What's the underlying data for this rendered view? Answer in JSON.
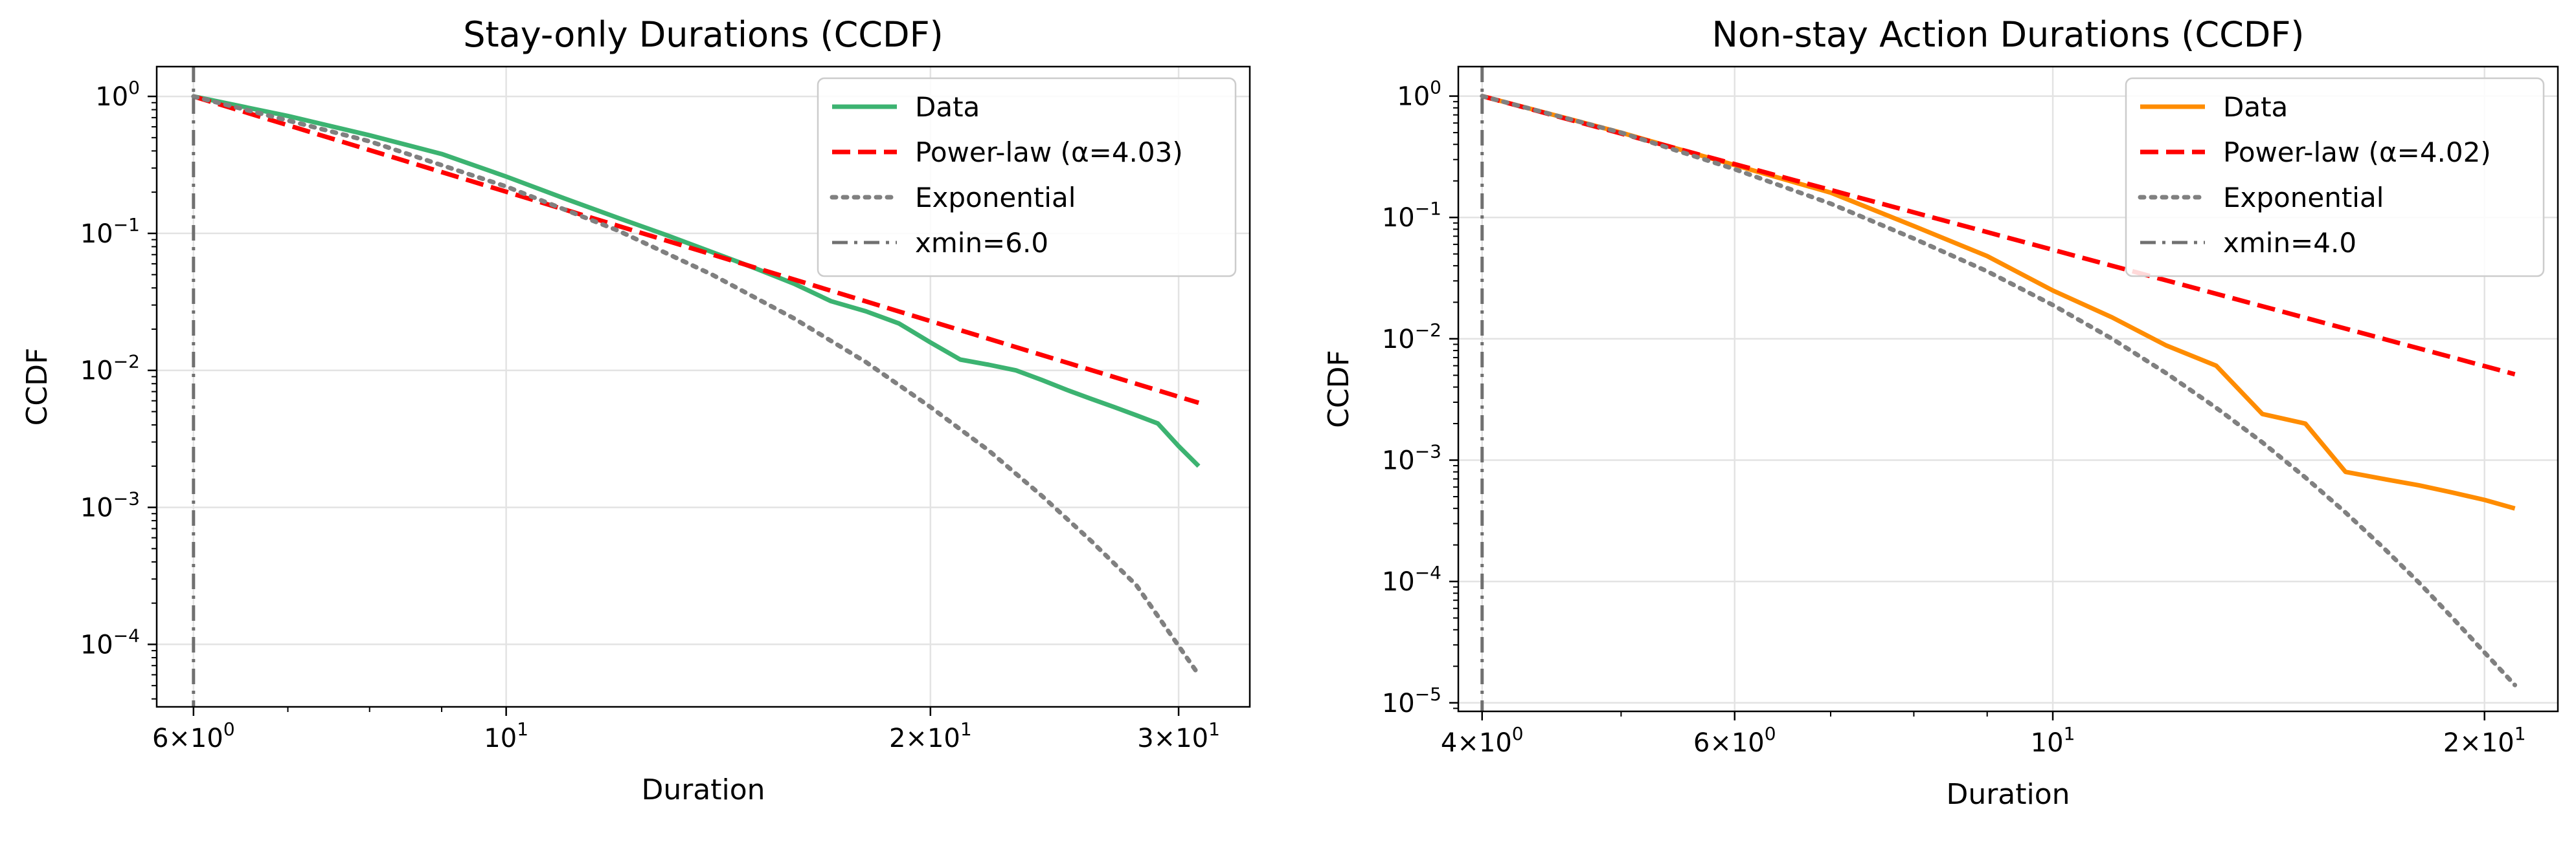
{
  "chart_data": [
    {
      "type": "line",
      "title": "Stay-only Durations (CCDF)",
      "xlabel": "Duration",
      "ylabel": "CCDF",
      "xscale": "log",
      "yscale": "log",
      "xlim": [
        5.65,
        33.7
      ],
      "ylim": [
        3.5e-05,
        1.65
      ],
      "grid": true,
      "legend_position": "top-right",
      "xticks": [
        {
          "value": 6,
          "mantissa": "6",
          "exp": "0"
        },
        {
          "value": 10,
          "mantissa": "",
          "exp": "1"
        },
        {
          "value": 20,
          "mantissa": "2",
          "exp": "1"
        },
        {
          "value": 30,
          "mantissa": "3",
          "exp": "1"
        }
      ],
      "yticks": [
        {
          "value": 1,
          "exp": "0"
        },
        {
          "value": 0.1,
          "exp": "−1"
        },
        {
          "value": 0.01,
          "exp": "−2"
        },
        {
          "value": 0.001,
          "exp": "−3"
        },
        {
          "value": 0.0001,
          "exp": "−4"
        }
      ],
      "series": [
        {
          "name": "Data",
          "color": "#3cb371",
          "style": "solid",
          "x": [
            6,
            7,
            8,
            9,
            10,
            11,
            12,
            13,
            14,
            15,
            16,
            17,
            18,
            19,
            20,
            21,
            22,
            23,
            24,
            25,
            26,
            27,
            28,
            29,
            30,
            31
          ],
          "y": [
            1.0,
            0.72,
            0.52,
            0.38,
            0.26,
            0.18,
            0.13,
            0.097,
            0.073,
            0.056,
            0.043,
            0.032,
            0.027,
            0.022,
            0.016,
            0.012,
            0.011,
            0.01,
            0.0085,
            0.0072,
            0.0062,
            0.0054,
            0.0047,
            0.0041,
            0.0028,
            0.002
          ]
        },
        {
          "name": "Power-law (α=4.03)",
          "color": "#ff0000",
          "style": "dashed",
          "x": [
            6,
            31
          ],
          "y": [
            1.0,
            0.0058
          ]
        },
        {
          "name": "Exponential",
          "color": "#808080",
          "style": "dotted",
          "x": [
            6,
            8,
            10,
            12,
            14,
            16,
            18,
            20,
            22,
            24,
            26,
            28,
            31
          ],
          "y": [
            1.0,
            0.47,
            0.22,
            0.105,
            0.05,
            0.024,
            0.0115,
            0.0054,
            0.0026,
            0.00121,
            0.00057,
            0.00027,
            6e-05
          ]
        },
        {
          "name": "xmin=6.0",
          "color": "#707070",
          "style": "dashdot",
          "vline": 6
        }
      ]
    },
    {
      "type": "line",
      "title": "Non-stay Action Durations (CCDF)",
      "xlabel": "Duration",
      "ylabel": "CCDF",
      "xscale": "log",
      "yscale": "log",
      "xlim": [
        3.85,
        22.5
      ],
      "ylim": [
        8.5e-06,
        1.75
      ],
      "grid": true,
      "legend_position": "top-right",
      "xticks": [
        {
          "value": 4,
          "mantissa": "4",
          "exp": "0"
        },
        {
          "value": 6,
          "mantissa": "6",
          "exp": "0"
        },
        {
          "value": 10,
          "mantissa": "",
          "exp": "1"
        },
        {
          "value": 20,
          "mantissa": "2",
          "exp": "1"
        }
      ],
      "yticks": [
        {
          "value": 1,
          "exp": "0"
        },
        {
          "value": 0.1,
          "exp": "−1"
        },
        {
          "value": 0.01,
          "exp": "−2"
        },
        {
          "value": 0.001,
          "exp": "−3"
        },
        {
          "value": 0.0001,
          "exp": "−4"
        },
        {
          "value": 1e-05,
          "exp": "−5"
        }
      ],
      "series": [
        {
          "name": "Data",
          "color": "#ff8c00",
          "style": "solid",
          "x": [
            4,
            5,
            6,
            7,
            8,
            9,
            10,
            11,
            12,
            13,
            14,
            15,
            16,
            17,
            18,
            19,
            20,
            21
          ],
          "y": [
            1.0,
            0.5,
            0.27,
            0.16,
            0.085,
            0.048,
            0.025,
            0.015,
            0.0088,
            0.006,
            0.0024,
            0.002,
            0.0008,
            0.0007,
            0.00062,
            0.00054,
            0.00047,
            0.0004
          ]
        },
        {
          "name": "Power-law (α=4.02)",
          "color": "#ff0000",
          "style": "dashed",
          "x": [
            4,
            21
          ],
          "y": [
            1.0,
            0.0051
          ]
        },
        {
          "name": "Exponential",
          "color": "#808080",
          "style": "dotted",
          "x": [
            4,
            5,
            6,
            7,
            8,
            9,
            10,
            11,
            12,
            13,
            14,
            15,
            16,
            17,
            18,
            19,
            20,
            21
          ],
          "y": [
            1.0,
            0.5,
            0.25,
            0.13,
            0.067,
            0.036,
            0.019,
            0.01,
            0.0052,
            0.0027,
            0.0014,
            0.00072,
            0.00037,
            0.00019,
            9.8e-05,
            5e-05,
            2.6e-05,
            1.4e-05
          ]
        },
        {
          "name": "xmin=4.0",
          "color": "#707070",
          "style": "dashdot",
          "vline": 4
        }
      ]
    }
  ]
}
